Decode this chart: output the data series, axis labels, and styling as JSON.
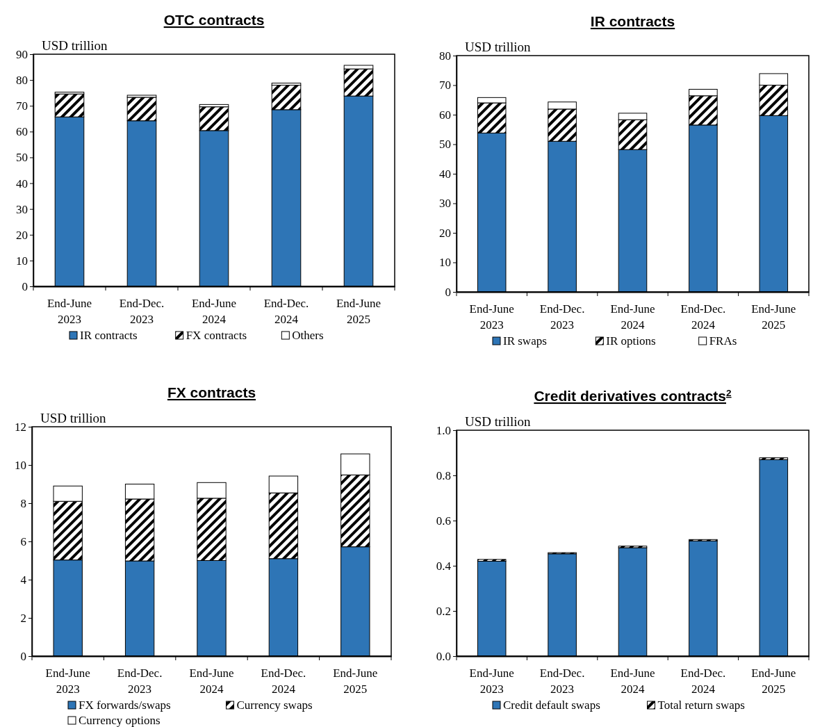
{
  "chart_data": [
    {
      "type": "bar",
      "title": "OTC contracts",
      "ylabel": "USD trillion",
      "stacked": true,
      "legend": "bottom",
      "categories": [
        "End-June 2023",
        "End-Dec. 2023",
        "End-June 2024",
        "End-Dec. 2024",
        "End-June 2025"
      ],
      "ylim": [
        0,
        90
      ],
      "yticks": [
        0,
        10,
        20,
        30,
        40,
        50,
        60,
        70,
        80,
        90
      ],
      "series": [
        {
          "name": "IR contracts",
          "color": "#2e75b6",
          "values": [
            65.7,
            64.2,
            60.4,
            68.5,
            73.8
          ]
        },
        {
          "name": "FX contracts",
          "color": "#000000",
          "values": [
            8.9,
            9.1,
            9.2,
            9.5,
            10.5
          ]
        },
        {
          "name": "Others",
          "color": "#ffffff",
          "values": [
            0.7,
            0.8,
            0.9,
            0.8,
            1.4
          ]
        }
      ]
    },
    {
      "type": "bar",
      "title": "IR contracts",
      "ylabel": "USD trillion",
      "stacked": true,
      "legend": "bottom",
      "categories": [
        "End-June 2023",
        "End-Dec. 2023",
        "End-June 2024",
        "End-Dec. 2024",
        "End-June 2025"
      ],
      "ylim": [
        0,
        80
      ],
      "yticks": [
        0,
        10,
        20,
        30,
        40,
        50,
        60,
        70,
        80
      ],
      "series": [
        {
          "name": "IR swaps",
          "color": "#2e75b6",
          "values": [
            53.8,
            51.0,
            48.2,
            56.5,
            59.7
          ]
        },
        {
          "name": "IR options",
          "color": "#000000",
          "values": [
            10.2,
            10.9,
            10.1,
            9.9,
            10.3
          ]
        },
        {
          "name": "FRAs",
          "color": "#ffffff",
          "values": [
            1.8,
            2.4,
            2.2,
            2.2,
            3.9
          ]
        }
      ]
    },
    {
      "type": "bar",
      "title": "FX contracts",
      "ylabel": "USD trillion",
      "stacked": true,
      "legend": "bottom",
      "categories": [
        "End-June 2023",
        "End-Dec. 2023",
        "End-June 2024",
        "End-Dec. 2024",
        "End-June 2025"
      ],
      "ylim": [
        0,
        12
      ],
      "yticks": [
        0,
        2,
        4,
        6,
        8,
        10,
        12
      ],
      "series": [
        {
          "name": "FX forwards/swaps",
          "color": "#2e75b6",
          "values": [
            5.03,
            4.98,
            5.0,
            5.1,
            5.72
          ]
        },
        {
          "name": "Currency swaps",
          "color": "#000000",
          "values": [
            3.07,
            3.24,
            3.26,
            3.44,
            3.76
          ]
        },
        {
          "name": "Currency options",
          "color": "#ffffff",
          "values": [
            0.8,
            0.78,
            0.82,
            0.88,
            1.1
          ]
        }
      ]
    },
    {
      "type": "bar",
      "title": "Credit derivatives contracts$^{2}$",
      "ylabel": "USD trillion",
      "stacked": true,
      "legend": "bottom",
      "categories": [
        "End-June 2023",
        "End-Dec. 2023",
        "End-June 2024",
        "End-Dec. 2024",
        "End-June 2025"
      ],
      "ylim": [
        0,
        1.0
      ],
      "yticks": [
        {
          "value": 0,
          "label": "0.0"
        },
        0.2,
        0.4,
        0.6,
        0.8,
        {
          "value": 1,
          "label": "1.0"
        }
      ],
      "series": [
        {
          "name": "Credit default swaps",
          "color": "#2e75b6",
          "values": [
            0.42,
            0.453,
            0.48,
            0.51,
            0.87
          ]
        },
        {
          "name": "Total return swaps",
          "color": "#000000",
          "values": [
            0.008,
            0.005,
            0.007,
            0.006,
            0.008
          ]
        }
      ]
    }
  ]
}
